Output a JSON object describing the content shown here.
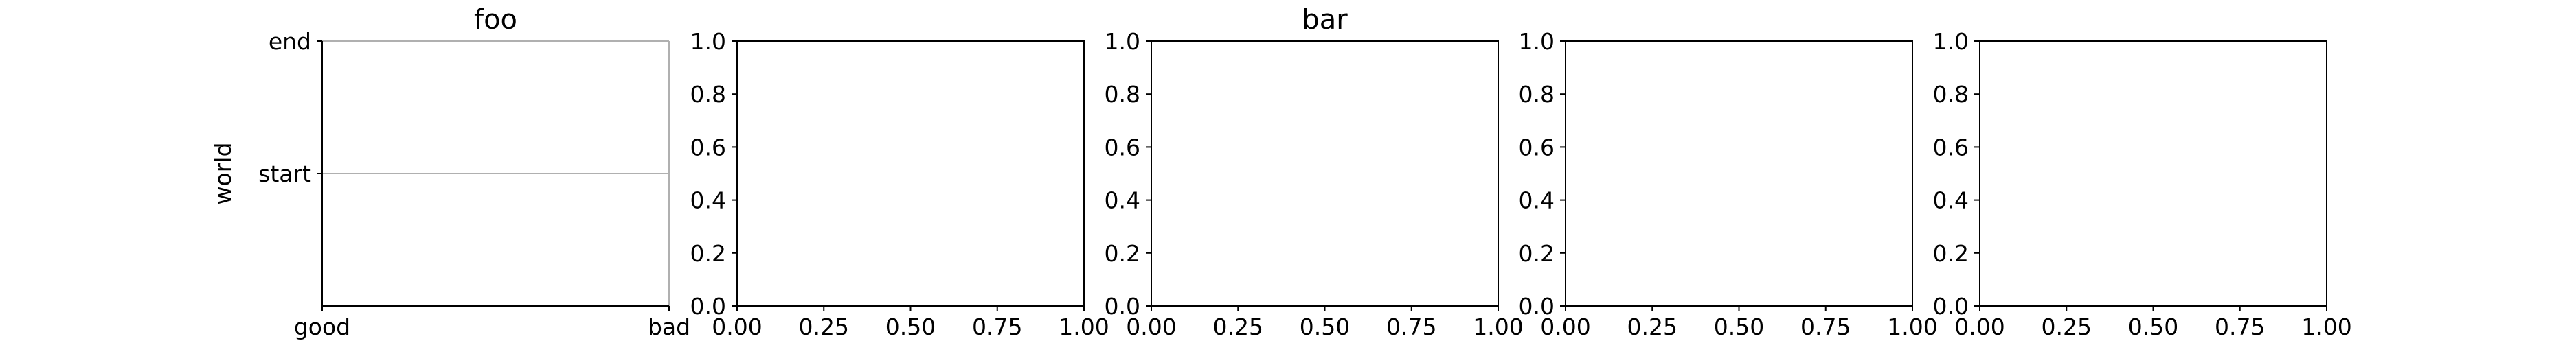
{
  "chart_data": [
    {
      "type": "line",
      "title": "foo",
      "xlabel": "",
      "ylabel": "world",
      "x_categories": [
        "good",
        "bad"
      ],
      "y_categories": [
        "start",
        "end"
      ],
      "grid": true,
      "series": []
    },
    {
      "type": "line",
      "title": "",
      "xlim": [
        0.0,
        1.0
      ],
      "ylim": [
        0.0,
        1.0
      ],
      "xticks": [
        "0.00",
        "0.25",
        "0.50",
        "0.75",
        "1.00"
      ],
      "yticks": [
        "0.0",
        "0.2",
        "0.4",
        "0.6",
        "0.8",
        "1.0"
      ],
      "grid": false,
      "series": []
    },
    {
      "type": "line",
      "title": "bar",
      "xlim": [
        0.0,
        1.0
      ],
      "ylim": [
        0.0,
        1.0
      ],
      "xticks": [
        "0.00",
        "0.25",
        "0.50",
        "0.75",
        "1.00"
      ],
      "yticks": [
        "0.0",
        "0.2",
        "0.4",
        "0.6",
        "0.8",
        "1.0"
      ],
      "grid": false,
      "series": []
    },
    {
      "type": "line",
      "title": "",
      "xlim": [
        0.0,
        1.0
      ],
      "ylim": [
        0.0,
        1.0
      ],
      "xticks": [
        "0.00",
        "0.25",
        "0.50",
        "0.75",
        "1.00"
      ],
      "yticks": [
        "0.0",
        "0.2",
        "0.4",
        "0.6",
        "0.8",
        "1.0"
      ],
      "grid": false,
      "series": []
    },
    {
      "type": "line",
      "title": "",
      "xlim": [
        0.0,
        1.0
      ],
      "ylim": [
        0.0,
        1.0
      ],
      "xticks": [
        "0.00",
        "0.25",
        "0.50",
        "0.75",
        "1.00"
      ],
      "yticks": [
        "0.0",
        "0.2",
        "0.4",
        "0.6",
        "0.8",
        "1.0"
      ],
      "grid": false,
      "series": []
    }
  ]
}
